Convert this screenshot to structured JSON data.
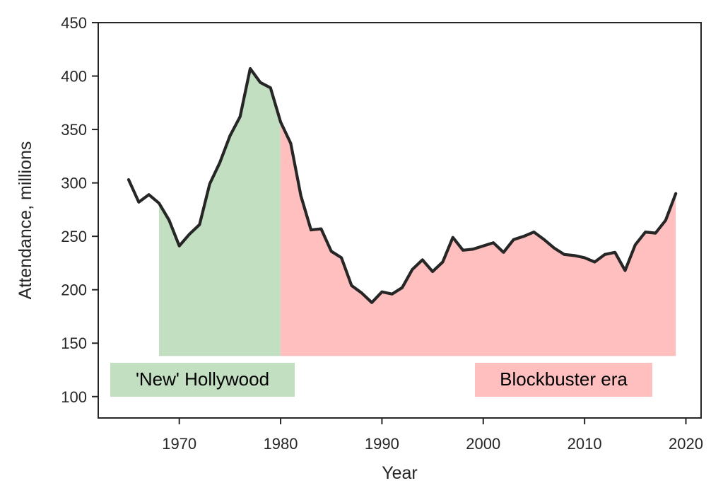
{
  "chart_data": {
    "type": "line",
    "title": "",
    "xlabel": "Year",
    "ylabel": "Attendance, millions",
    "xlim": [
      1962,
      2021.5
    ],
    "ylim": [
      80,
      450
    ],
    "xticks": [
      1970,
      1980,
      1990,
      2000,
      2010,
      2020
    ],
    "yticks": [
      100,
      150,
      200,
      250,
      300,
      350,
      400,
      450
    ],
    "grid": false,
    "x": [
      1965,
      1966,
      1967,
      1968,
      1969,
      1970,
      1971,
      1972,
      1973,
      1974,
      1975,
      1976,
      1977,
      1978,
      1979,
      1980,
      1981,
      1982,
      1983,
      1984,
      1985,
      1986,
      1987,
      1988,
      1989,
      1990,
      1991,
      1992,
      1993,
      1994,
      1995,
      1996,
      1997,
      1998,
      1999,
      2000,
      2001,
      2002,
      2003,
      2004,
      2005,
      2006,
      2007,
      2008,
      2009,
      2010,
      2011,
      2012,
      2013,
      2014,
      2015,
      2016,
      2017,
      2018,
      2019
    ],
    "series": [
      {
        "values": [
          303,
          282,
          289,
          281,
          265,
          241,
          252,
          261,
          299,
          319,
          344,
          362,
          407,
          394,
          389,
          357,
          337,
          288,
          256,
          257,
          236,
          230,
          204,
          197,
          188,
          198,
          196,
          202,
          219,
          228,
          217,
          226,
          249,
          237,
          238,
          241,
          244,
          235,
          247,
          250,
          254,
          247,
          239,
          233,
          232,
          230,
          226,
          233,
          235,
          218,
          242,
          254,
          253,
          265,
          290
        ],
        "color": "#262626"
      }
    ],
    "regions": [
      {
        "label": "'New' Hollywood",
        "x_start": 1968,
        "x_end": 1980,
        "baseline": 138,
        "color": "#c2dfc2"
      },
      {
        "label": "Blockbuster era",
        "x_start": 1980,
        "x_end": 2019,
        "baseline": 138,
        "color": "#ffbfbf"
      }
    ]
  }
}
